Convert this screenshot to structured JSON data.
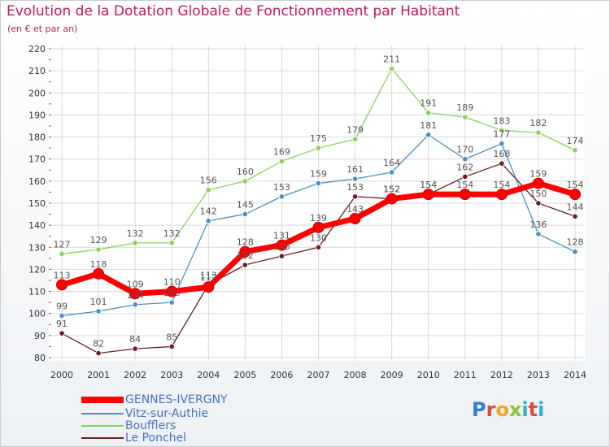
{
  "title": "Evolution de la Dotation Globale de Fonctionnement par Habitant",
  "subtitle": "(en € et par an)",
  "logo_text": "Proxiti",
  "colors": {
    "title": "#c2185b",
    "grid": "#d9d9d9",
    "axis_text": "#333333",
    "label_text": "#555555",
    "legend_text": "#4472c4"
  },
  "chart_data": {
    "type": "line",
    "title": "Evolution de la Dotation Globale de Fonctionnement par Habitant",
    "subtitle": "(en € et par an)",
    "xlabel": "",
    "ylabel": "",
    "ylim": [
      80,
      220
    ],
    "yticks": [
      80,
      90,
      100,
      110,
      120,
      130,
      140,
      150,
      160,
      170,
      180,
      190,
      200,
      210,
      220
    ],
    "grid": true,
    "legend_position": "bottom-left",
    "x": [
      "2000",
      "2001",
      "2002",
      "2003",
      "2004",
      "2005",
      "2006",
      "2007",
      "2008",
      "2009",
      "2010",
      "2011",
      "2012",
      "2013",
      "2014"
    ],
    "series": [
      {
        "name": "GENNES-IVERGNY",
        "color": "#ff0000",
        "emphasis": "thick",
        "values": [
          113,
          118,
          109,
          110,
          112,
          128,
          131,
          139,
          143,
          152,
          154,
          154,
          154,
          159,
          154
        ]
      },
      {
        "name": "Vitz-sur-Authie",
        "color": "#4a90c8",
        "emphasis": "thin",
        "values": [
          99,
          101,
          104,
          105,
          142,
          145,
          153,
          159,
          161,
          164,
          181,
          170,
          177,
          136,
          128
        ]
      },
      {
        "name": "Boufflers",
        "color": "#8cd25a",
        "emphasis": "thin",
        "values": [
          127,
          129,
          132,
          132,
          156,
          160,
          169,
          175,
          179,
          211,
          191,
          189,
          183,
          182,
          174
        ]
      },
      {
        "name": "Le Ponchel",
        "color": "#6b1f24",
        "emphasis": "thin",
        "values": [
          91,
          82,
          84,
          85,
          113,
          122,
          126,
          130,
          153,
          152,
          154,
          162,
          168,
          150,
          144
        ]
      }
    ]
  }
}
